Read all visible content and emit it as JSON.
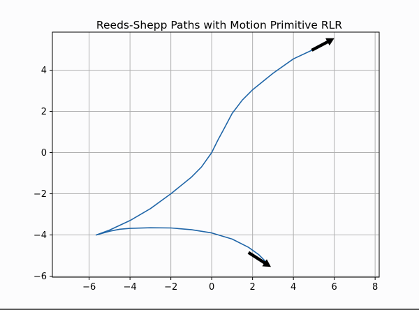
{
  "chart_data": {
    "type": "line",
    "title": "Reeds-Shepp Paths with Motion Primitive RLR",
    "xlabel": "",
    "ylabel": "",
    "xlim": [
      -7.8,
      8.2
    ],
    "ylim": [
      -6.05,
      5.85
    ],
    "xticks": [
      -6,
      -4,
      -2,
      0,
      2,
      4,
      6,
      8
    ],
    "yticks": [
      -6,
      -4,
      -2,
      0,
      2,
      4
    ],
    "grid": true,
    "line_color": "#2066a8",
    "series": [
      {
        "values": [
          [
            -5.65,
            -4.0
          ],
          [
            -5.0,
            -3.76
          ],
          [
            -4.0,
            -3.3
          ],
          [
            -3.0,
            -2.72
          ],
          [
            -2.0,
            -2.0
          ],
          [
            -1.0,
            -1.2
          ],
          [
            -0.5,
            -0.7
          ],
          [
            0.0,
            0.0
          ],
          [
            0.3,
            0.6
          ],
          [
            0.6,
            1.15
          ],
          [
            1.0,
            1.9
          ],
          [
            1.5,
            2.55
          ],
          [
            2.0,
            3.05
          ],
          [
            3.0,
            3.85
          ],
          [
            4.0,
            4.55
          ],
          [
            4.9,
            4.97
          ]
        ]
      },
      {
        "values": [
          [
            -5.65,
            -4.0
          ],
          [
            -5.0,
            -3.82
          ],
          [
            -4.5,
            -3.72
          ],
          [
            -4.0,
            -3.68
          ],
          [
            -3.0,
            -3.65
          ],
          [
            -2.0,
            -3.66
          ],
          [
            -1.0,
            -3.74
          ],
          [
            0.0,
            -3.9
          ],
          [
            1.0,
            -4.2
          ],
          [
            1.8,
            -4.6
          ],
          [
            2.3,
            -4.95
          ],
          [
            2.8,
            -5.45
          ]
        ]
      }
    ],
    "arrows": [
      {
        "from": [
          4.9,
          4.97
        ],
        "to": [
          6.0,
          5.55
        ],
        "color": "#000000"
      },
      {
        "from": [
          1.8,
          -4.85
        ],
        "to": [
          2.9,
          -5.55
        ],
        "color": "#000000"
      }
    ]
  }
}
